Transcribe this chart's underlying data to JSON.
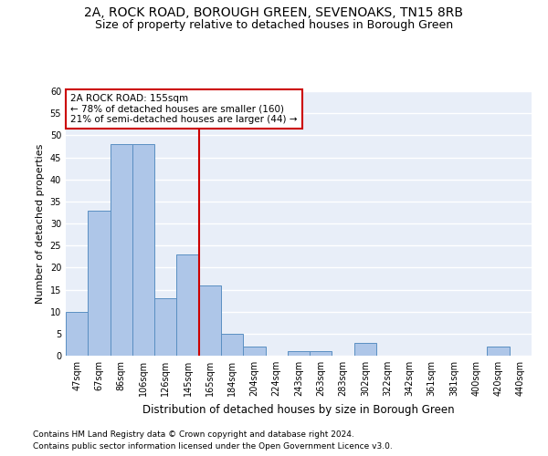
{
  "title1": "2A, ROCK ROAD, BOROUGH GREEN, SEVENOAKS, TN15 8RB",
  "title2": "Size of property relative to detached houses in Borough Green",
  "xlabel": "Distribution of detached houses by size in Borough Green",
  "ylabel": "Number of detached properties",
  "categories": [
    "47sqm",
    "67sqm",
    "86sqm",
    "106sqm",
    "126sqm",
    "145sqm",
    "165sqm",
    "184sqm",
    "204sqm",
    "224sqm",
    "243sqm",
    "263sqm",
    "283sqm",
    "302sqm",
    "322sqm",
    "342sqm",
    "361sqm",
    "381sqm",
    "400sqm",
    "420sqm",
    "440sqm"
  ],
  "values": [
    10,
    33,
    48,
    48,
    13,
    23,
    16,
    5,
    2,
    0,
    1,
    1,
    0,
    3,
    0,
    0,
    0,
    0,
    0,
    2,
    0
  ],
  "bar_color": "#aec6e8",
  "bar_edge_color": "#5a8fc2",
  "background_color": "#e8eef8",
  "grid_color": "#ffffff",
  "annotation_line1": "2A ROCK ROAD: 155sqm",
  "annotation_line2": "← 78% of detached houses are smaller (160)",
  "annotation_line3": "21% of semi-detached houses are larger (44) →",
  "annotation_box_color": "#cc0000",
  "vline_x_index": 5.5,
  "vline_color": "#cc0000",
  "ylim": [
    0,
    60
  ],
  "yticks": [
    0,
    5,
    10,
    15,
    20,
    25,
    30,
    35,
    40,
    45,
    50,
    55,
    60
  ],
  "footer1": "Contains HM Land Registry data © Crown copyright and database right 2024.",
  "footer2": "Contains public sector information licensed under the Open Government Licence v3.0.",
  "title1_fontsize": 10,
  "title2_fontsize": 9,
  "xlabel_fontsize": 8.5,
  "ylabel_fontsize": 8,
  "tick_fontsize": 7,
  "annotation_fontsize": 7.5,
  "footer_fontsize": 6.5
}
